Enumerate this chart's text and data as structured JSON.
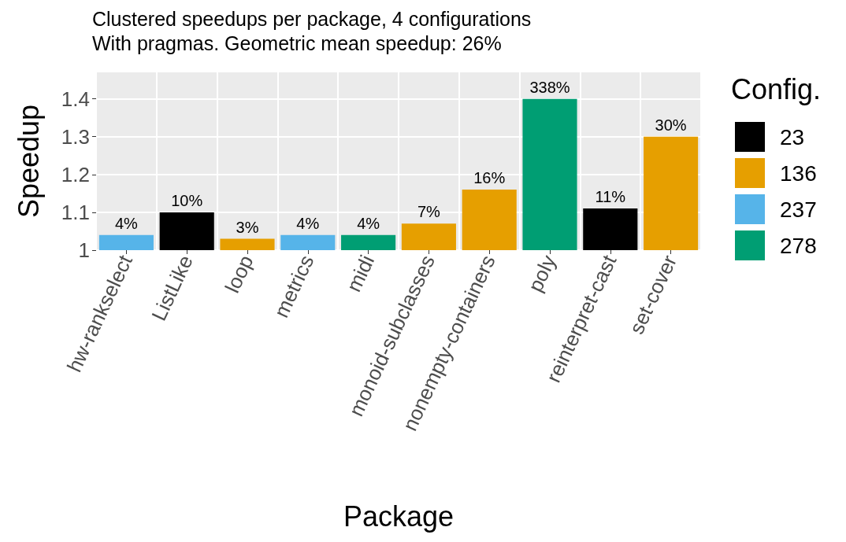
{
  "chart_data": {
    "type": "bar",
    "title": "Clustered speedups per package, 4 configurations",
    "subtitle": "With pragmas. Geometric mean speedup: 26%",
    "xlabel": "Package",
    "ylabel": "Speedup",
    "legend_title": "Config.",
    "categories": [
      "hw-rankselect",
      "ListLike",
      "loop",
      "metrics",
      "midi",
      "monoid-subclasses",
      "nonempty-containers",
      "poly",
      "reinterpret-cast",
      "set-cover"
    ],
    "stacked": true,
    "series": [
      {
        "name": "23",
        "color": "#000000",
        "values": [
          null,
          1.1,
          null,
          null,
          null,
          null,
          null,
          null,
          1.11,
          null
        ]
      },
      {
        "name": "136",
        "color": "#e69f00",
        "values": [
          null,
          null,
          1.03,
          null,
          null,
          1.07,
          1.16,
          null,
          null,
          1.3
        ]
      },
      {
        "name": "237",
        "color": "#56b4e9",
        "values": [
          1.04,
          null,
          null,
          1.04,
          null,
          null,
          null,
          null,
          null,
          null
        ]
      },
      {
        "name": "278",
        "color": "#009e73",
        "values": [
          null,
          null,
          null,
          null,
          1.04,
          null,
          null,
          1.4,
          null,
          null
        ]
      }
    ],
    "value_labels": [
      "4%",
      "10%",
      "3%",
      "4%",
      "4%",
      "7%",
      "16%",
      "338%",
      "11%",
      "30%"
    ],
    "ylim": [
      1,
      1.47
    ],
    "yticks": [
      1,
      1.1,
      1.2,
      1.3,
      1.4
    ],
    "grid": true,
    "legend": "right"
  }
}
